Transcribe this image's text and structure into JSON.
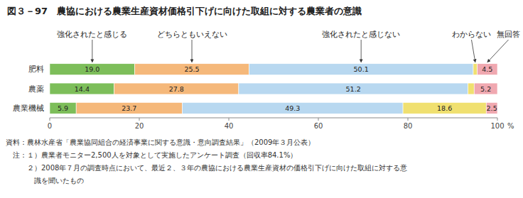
{
  "chart_data": {
    "type": "bar",
    "orientation": "horizontal",
    "stacked": true,
    "title": "図３－97　農協における農業生産資材価格引下げに向けた取組に対する農業者の意識",
    "xlabel": "%",
    "categories": [
      "肥料",
      "農薬",
      "農業機械"
    ],
    "series": [
      {
        "name": "強化されたと感じる",
        "color": "#7dbe5a",
        "values": [
          19.0,
          14.4,
          5.9
        ],
        "value_labels": [
          "19.0",
          "14.4",
          "5.9"
        ]
      },
      {
        "name": "どちらともいえない",
        "color": "#f5b87a",
        "values": [
          25.5,
          27.8,
          23.7
        ],
        "value_labels": [
          "25.5",
          "27.8",
          "23.7"
        ]
      },
      {
        "name": "強化されたと感じない",
        "color": "#b8d8f0",
        "values": [
          50.1,
          51.2,
          49.3
        ],
        "value_labels": [
          "50.1",
          "51.2",
          "49.3"
        ]
      },
      {
        "name": "わからない",
        "color": "#f0e070",
        "values": [
          0.9,
          1.4,
          18.6
        ],
        "value_labels": [
          null,
          null,
          "18.6"
        ]
      },
      {
        "name": "無回答",
        "color": "#f0a8b0",
        "values": [
          4.5,
          5.2,
          2.5
        ],
        "value_labels": [
          "4.5",
          "5.2",
          "2.5"
        ]
      }
    ],
    "xlim": [
      0,
      100
    ],
    "xticks": [
      0,
      20,
      40,
      60,
      80,
      100
    ],
    "grid": false,
    "data_labels": true,
    "annotations": [
      "資料：農林水産省「農業協同組合の経済事業に関する意識・意向調査結果」（2009年３月公表）",
      "　注：１）農業者モニター2,500人を対象として実施したアンケート調査（回収率84.1%）",
      "　　　２）2008年７月の調査時点において、最近２、３年の農協における農業生産資材の価格引下げに向けた取組に対する意",
      "　　　　識を聞いたもの"
    ]
  }
}
